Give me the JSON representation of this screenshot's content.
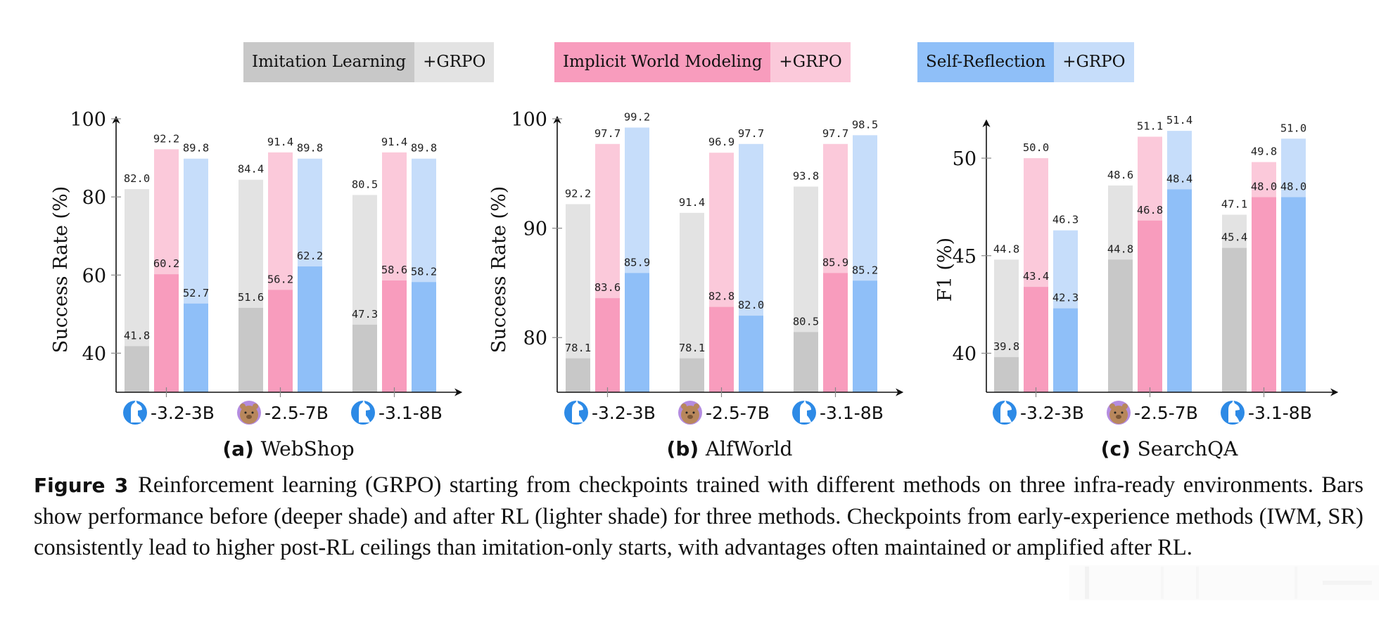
{
  "legend": [
    {
      "label": "Imitation Learning",
      "color": "#c8c8c8",
      "grpo_label": "+GRPO",
      "grpo_color": "#e3e3e3"
    },
    {
      "label": "Implicit World Modeling",
      "color": "#f89cbd",
      "grpo_label": "+GRPO",
      "grpo_color": "#fbc9da"
    },
    {
      "label": "Self-Reflection",
      "color": "#8fbff8",
      "grpo_label": "+GRPO",
      "grpo_color": "#c6ddfa"
    }
  ],
  "model_labels": [
    {
      "icon": "llama-icon",
      "label": "-3.2-3B"
    },
    {
      "icon": "qwen-bear-icon",
      "label": "-2.5-7B"
    },
    {
      "icon": "llama-icon",
      "label": "-3.1-8B"
    }
  ],
  "chart_data": [
    {
      "type": "bar",
      "panel_letter": "(a)",
      "title": "WebShop",
      "ylabel": "Success Rate (%)",
      "xlabel": "",
      "ylim": [
        30,
        100
      ],
      "yticks": [
        40,
        60,
        80,
        100
      ],
      "categories": [
        "Llama-3.2-3B",
        "Qwen-2.5-7B",
        "Llama-3.1-8B"
      ],
      "series": [
        {
          "name": "Imitation Learning",
          "before": [
            41.8,
            51.6,
            47.3
          ],
          "after_grpo": [
            82.0,
            84.4,
            80.5
          ]
        },
        {
          "name": "Implicit World Modeling",
          "before": [
            60.2,
            56.2,
            58.6
          ],
          "after_grpo": [
            92.2,
            91.4,
            91.4
          ]
        },
        {
          "name": "Self-Reflection",
          "before": [
            52.7,
            62.2,
            58.2
          ],
          "after_grpo": [
            89.8,
            89.8,
            89.8
          ]
        }
      ]
    },
    {
      "type": "bar",
      "panel_letter": "(b)",
      "title": "AlfWorld",
      "ylabel": "Success Rate (%)",
      "xlabel": "",
      "ylim": [
        75,
        100
      ],
      "yticks": [
        80,
        90,
        100
      ],
      "categories": [
        "Llama-3.2-3B",
        "Qwen-2.5-7B",
        "Llama-3.1-8B"
      ],
      "series": [
        {
          "name": "Imitation Learning",
          "before": [
            78.1,
            78.1,
            80.5
          ],
          "after_grpo": [
            92.2,
            91.4,
            93.8
          ]
        },
        {
          "name": "Implicit World Modeling",
          "before": [
            83.6,
            82.8,
            85.9
          ],
          "after_grpo": [
            97.7,
            96.9,
            97.7
          ]
        },
        {
          "name": "Self-Reflection",
          "before": [
            85.9,
            82.0,
            85.2
          ],
          "after_grpo": [
            99.2,
            97.7,
            98.5
          ]
        }
      ]
    },
    {
      "type": "bar",
      "panel_letter": "(c)",
      "title": "SearchQA",
      "ylabel": "F1 (%)",
      "xlabel": "",
      "ylim": [
        38,
        52
      ],
      "yticks": [
        40,
        45,
        50
      ],
      "categories": [
        "Llama-3.2-3B",
        "Qwen-2.5-7B",
        "Llama-3.1-8B"
      ],
      "series": [
        {
          "name": "Imitation Learning",
          "before": [
            39.8,
            44.8,
            45.4
          ],
          "after_grpo": [
            44.8,
            48.6,
            47.1
          ]
        },
        {
          "name": "Implicit World Modeling",
          "before": [
            43.4,
            46.8,
            48.0
          ],
          "after_grpo": [
            50.0,
            51.1,
            49.8
          ]
        },
        {
          "name": "Self-Reflection",
          "before": [
            42.3,
            48.4,
            48.0
          ],
          "after_grpo": [
            46.3,
            51.4,
            51.0
          ]
        }
      ]
    }
  ],
  "caption": {
    "label": "Figure 3",
    "text": "Reinforcement learning (GRPO) starting from checkpoints trained with different methods on three infra-ready environments. Bars show performance before (deeper shade) and after RL (lighter shade) for three methods. Checkpoints from early-experience methods (IWM, SR) consistently lead to higher post-RL ceilings than imitation-only starts, with advantages often maintained or amplified after RL."
  }
}
